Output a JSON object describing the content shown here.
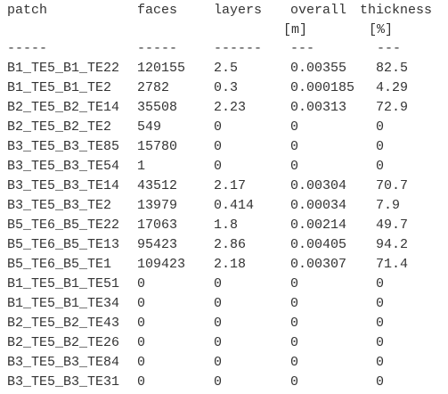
{
  "header": [
    "patch",
    "faces",
    "layers",
    "overall",
    "thickness"
  ],
  "units": [
    "[m]",
    "[%]"
  ],
  "separators": [
    "-----",
    "-----",
    "------",
    "---",
    "---"
  ],
  "rows": [
    [
      "B1_TE5_B1_TE22",
      "120155",
      "2.5",
      "0.00355",
      "82.5"
    ],
    [
      "B1_TE5_B1_TE2",
      "2782",
      "0.3",
      "0.000185",
      "4.29"
    ],
    [
      "B2_TE5_B2_TE14",
      "35508",
      "2.23",
      "0.00313",
      "72.9"
    ],
    [
      "B2_TE5_B2_TE2",
      "549",
      "0",
      "0",
      "0"
    ],
    [
      "B3_TE5_B3_TE85",
      "15780",
      "0",
      "0",
      "0"
    ],
    [
      "B3_TE5_B3_TE54",
      "1",
      "0",
      "0",
      "0"
    ],
    [
      "B3_TE5_B3_TE14",
      "43512",
      "2.17",
      "0.00304",
      "70.7"
    ],
    [
      "B3_TE5_B3_TE2",
      "13979",
      "0.414",
      "0.00034",
      "7.9"
    ],
    [
      "B5_TE6_B5_TE22",
      "17063",
      "1.8",
      "0.00214",
      "49.7"
    ],
    [
      "B5_TE6_B5_TE13",
      "95423",
      "2.86",
      "0.00405",
      "94.2"
    ],
    [
      "B5_TE6_B5_TE1",
      "109423",
      "2.18",
      "0.00307",
      "71.4"
    ],
    [
      "B1_TE5_B1_TE51",
      "0",
      "0",
      "0",
      "0"
    ],
    [
      "B1_TE5_B1_TE34",
      "0",
      "0",
      "0",
      "0"
    ],
    [
      "B2_TE5_B2_TE43",
      "0",
      "0",
      "0",
      "0"
    ],
    [
      "B2_TE5_B2_TE26",
      "0",
      "0",
      "0",
      "0"
    ],
    [
      "B3_TE5_B3_TE84",
      "0",
      "0",
      "0",
      "0"
    ],
    [
      "B3_TE5_B3_TE31",
      "0",
      "0",
      "0",
      "0"
    ]
  ]
}
